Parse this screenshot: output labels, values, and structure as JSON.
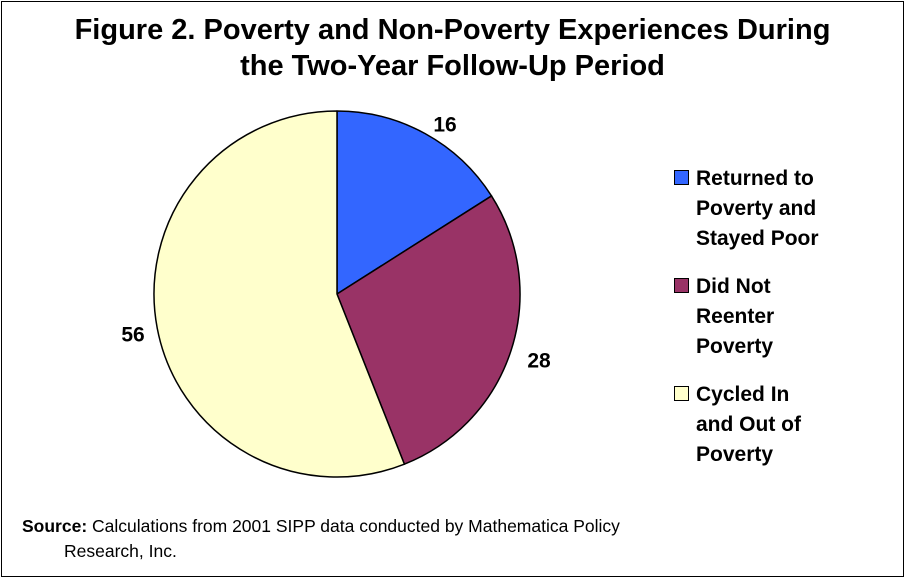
{
  "chart_data": {
    "type": "pie",
    "title": [
      "Figure 2. Poverty and Non-Poverty Experiences During",
      "the Two-Year Follow-Up Period"
    ],
    "slices": [
      {
        "label": "Returned to\nPoverty and\nStayed Poor",
        "value": 16,
        "color": "#3366ff"
      },
      {
        "label": "Did Not\nReenter\nPoverty",
        "value": 28,
        "color": "#993366"
      },
      {
        "label": "Cycled In\nand Out of\nPoverty",
        "value": 56,
        "color": "#ffffcc"
      }
    ],
    "data_labels": [
      "16",
      "28",
      "56"
    ],
    "legend_position": "right"
  },
  "source": {
    "label": "Source:",
    "text_line1": " Calculations from 2001 SIPP data conducted by Mathematica Policy",
    "text_line2": "Research, Inc."
  }
}
